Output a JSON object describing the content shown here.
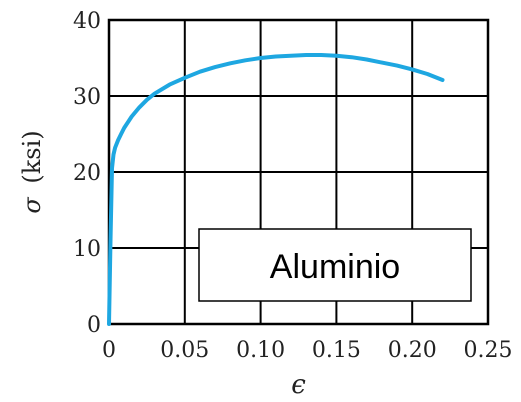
{
  "chart_data": {
    "type": "line",
    "title": "",
    "xlabel": "ϵ",
    "ylabel_symbol": "σ",
    "ylabel_unit": "(ksi)",
    "xlim": [
      0,
      0.25
    ],
    "ylim": [
      0,
      40
    ],
    "xticks": [
      0,
      0.05,
      0.1,
      0.15,
      0.2,
      0.25
    ],
    "xtick_labels": [
      "0",
      "0.05",
      "0.10",
      "0.15",
      "0.20",
      "0.25"
    ],
    "yticks": [
      0,
      10,
      20,
      30,
      40
    ],
    "ytick_labels": [
      "0",
      "10",
      "20",
      "30",
      "40"
    ],
    "grid": true,
    "series": [
      {
        "color": "#1ea7e1",
        "x": [
          0,
          0.001,
          0.002,
          0.003,
          0.004,
          0.006,
          0.008,
          0.01,
          0.015,
          0.02,
          0.025,
          0.03,
          0.04,
          0.05,
          0.06,
          0.07,
          0.08,
          0.09,
          0.1,
          0.11,
          0.12,
          0.13,
          0.14,
          0.15,
          0.16,
          0.17,
          0.18,
          0.19,
          0.2,
          0.21,
          0.22
        ],
        "y": [
          0,
          11,
          20.5,
          22.3,
          23.2,
          24.2,
          25.0,
          25.8,
          27.3,
          28.5,
          29.5,
          30.3,
          31.5,
          32.4,
          33.2,
          33.8,
          34.3,
          34.7,
          35.0,
          35.2,
          35.3,
          35.4,
          35.4,
          35.3,
          35.1,
          34.8,
          34.4,
          34.0,
          33.5,
          32.9,
          32.1
        ]
      }
    ],
    "annotation": {
      "text": "Aluminio"
    }
  }
}
